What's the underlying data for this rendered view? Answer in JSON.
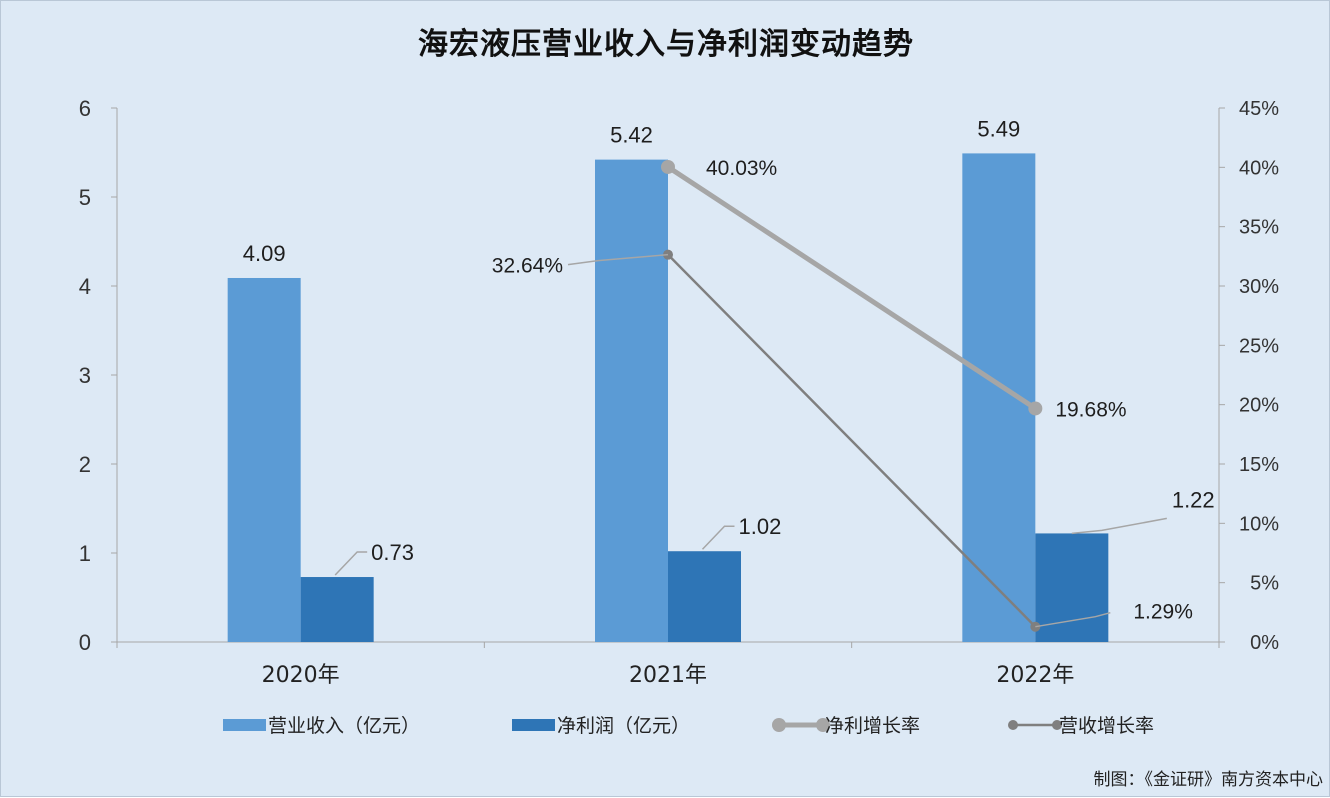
{
  "chart_data": {
    "type": "bar",
    "title": "海宏液压营业收入与净利润变动趋势",
    "categories": [
      "2020年",
      "2021年",
      "2022年"
    ],
    "series": [
      {
        "name": "营业收入（亿元）",
        "kind": "bar",
        "axis": "left",
        "color": "#5b9bd5",
        "values": [
          4.09,
          5.42,
          5.49
        ],
        "labels": [
          "4.09",
          "5.42",
          "5.49"
        ]
      },
      {
        "name": "净利润（亿元）",
        "kind": "bar",
        "axis": "left",
        "color": "#2e75b6",
        "values": [
          0.73,
          1.02,
          1.22
        ],
        "labels": [
          "0.73",
          "1.02",
          "1.22"
        ]
      },
      {
        "name": "净利增长率",
        "kind": "line",
        "axis": "right",
        "color": "#a6a6a6",
        "values": [
          null,
          40.03,
          19.68
        ],
        "labels": [
          "",
          "40.03%",
          "19.68%"
        ]
      },
      {
        "name": "营收增长率",
        "kind": "line",
        "axis": "right",
        "color": "#7f7f7f",
        "values": [
          null,
          32.64,
          1.29
        ],
        "labels": [
          "",
          "32.64%",
          "1.29%"
        ]
      }
    ],
    "y_left": {
      "min": 0,
      "max": 6,
      "ticks": [
        "0",
        "1",
        "2",
        "3",
        "4",
        "5",
        "6"
      ]
    },
    "y_right": {
      "min": 0,
      "max": 45,
      "unit": "%",
      "ticks": [
        "0%",
        "5%",
        "10%",
        "15%",
        "20%",
        "25%",
        "30%",
        "35%",
        "40%",
        "45%"
      ]
    },
    "grid": false,
    "legend_position": "bottom"
  },
  "source": "制图：《金证研》南方资本中心"
}
